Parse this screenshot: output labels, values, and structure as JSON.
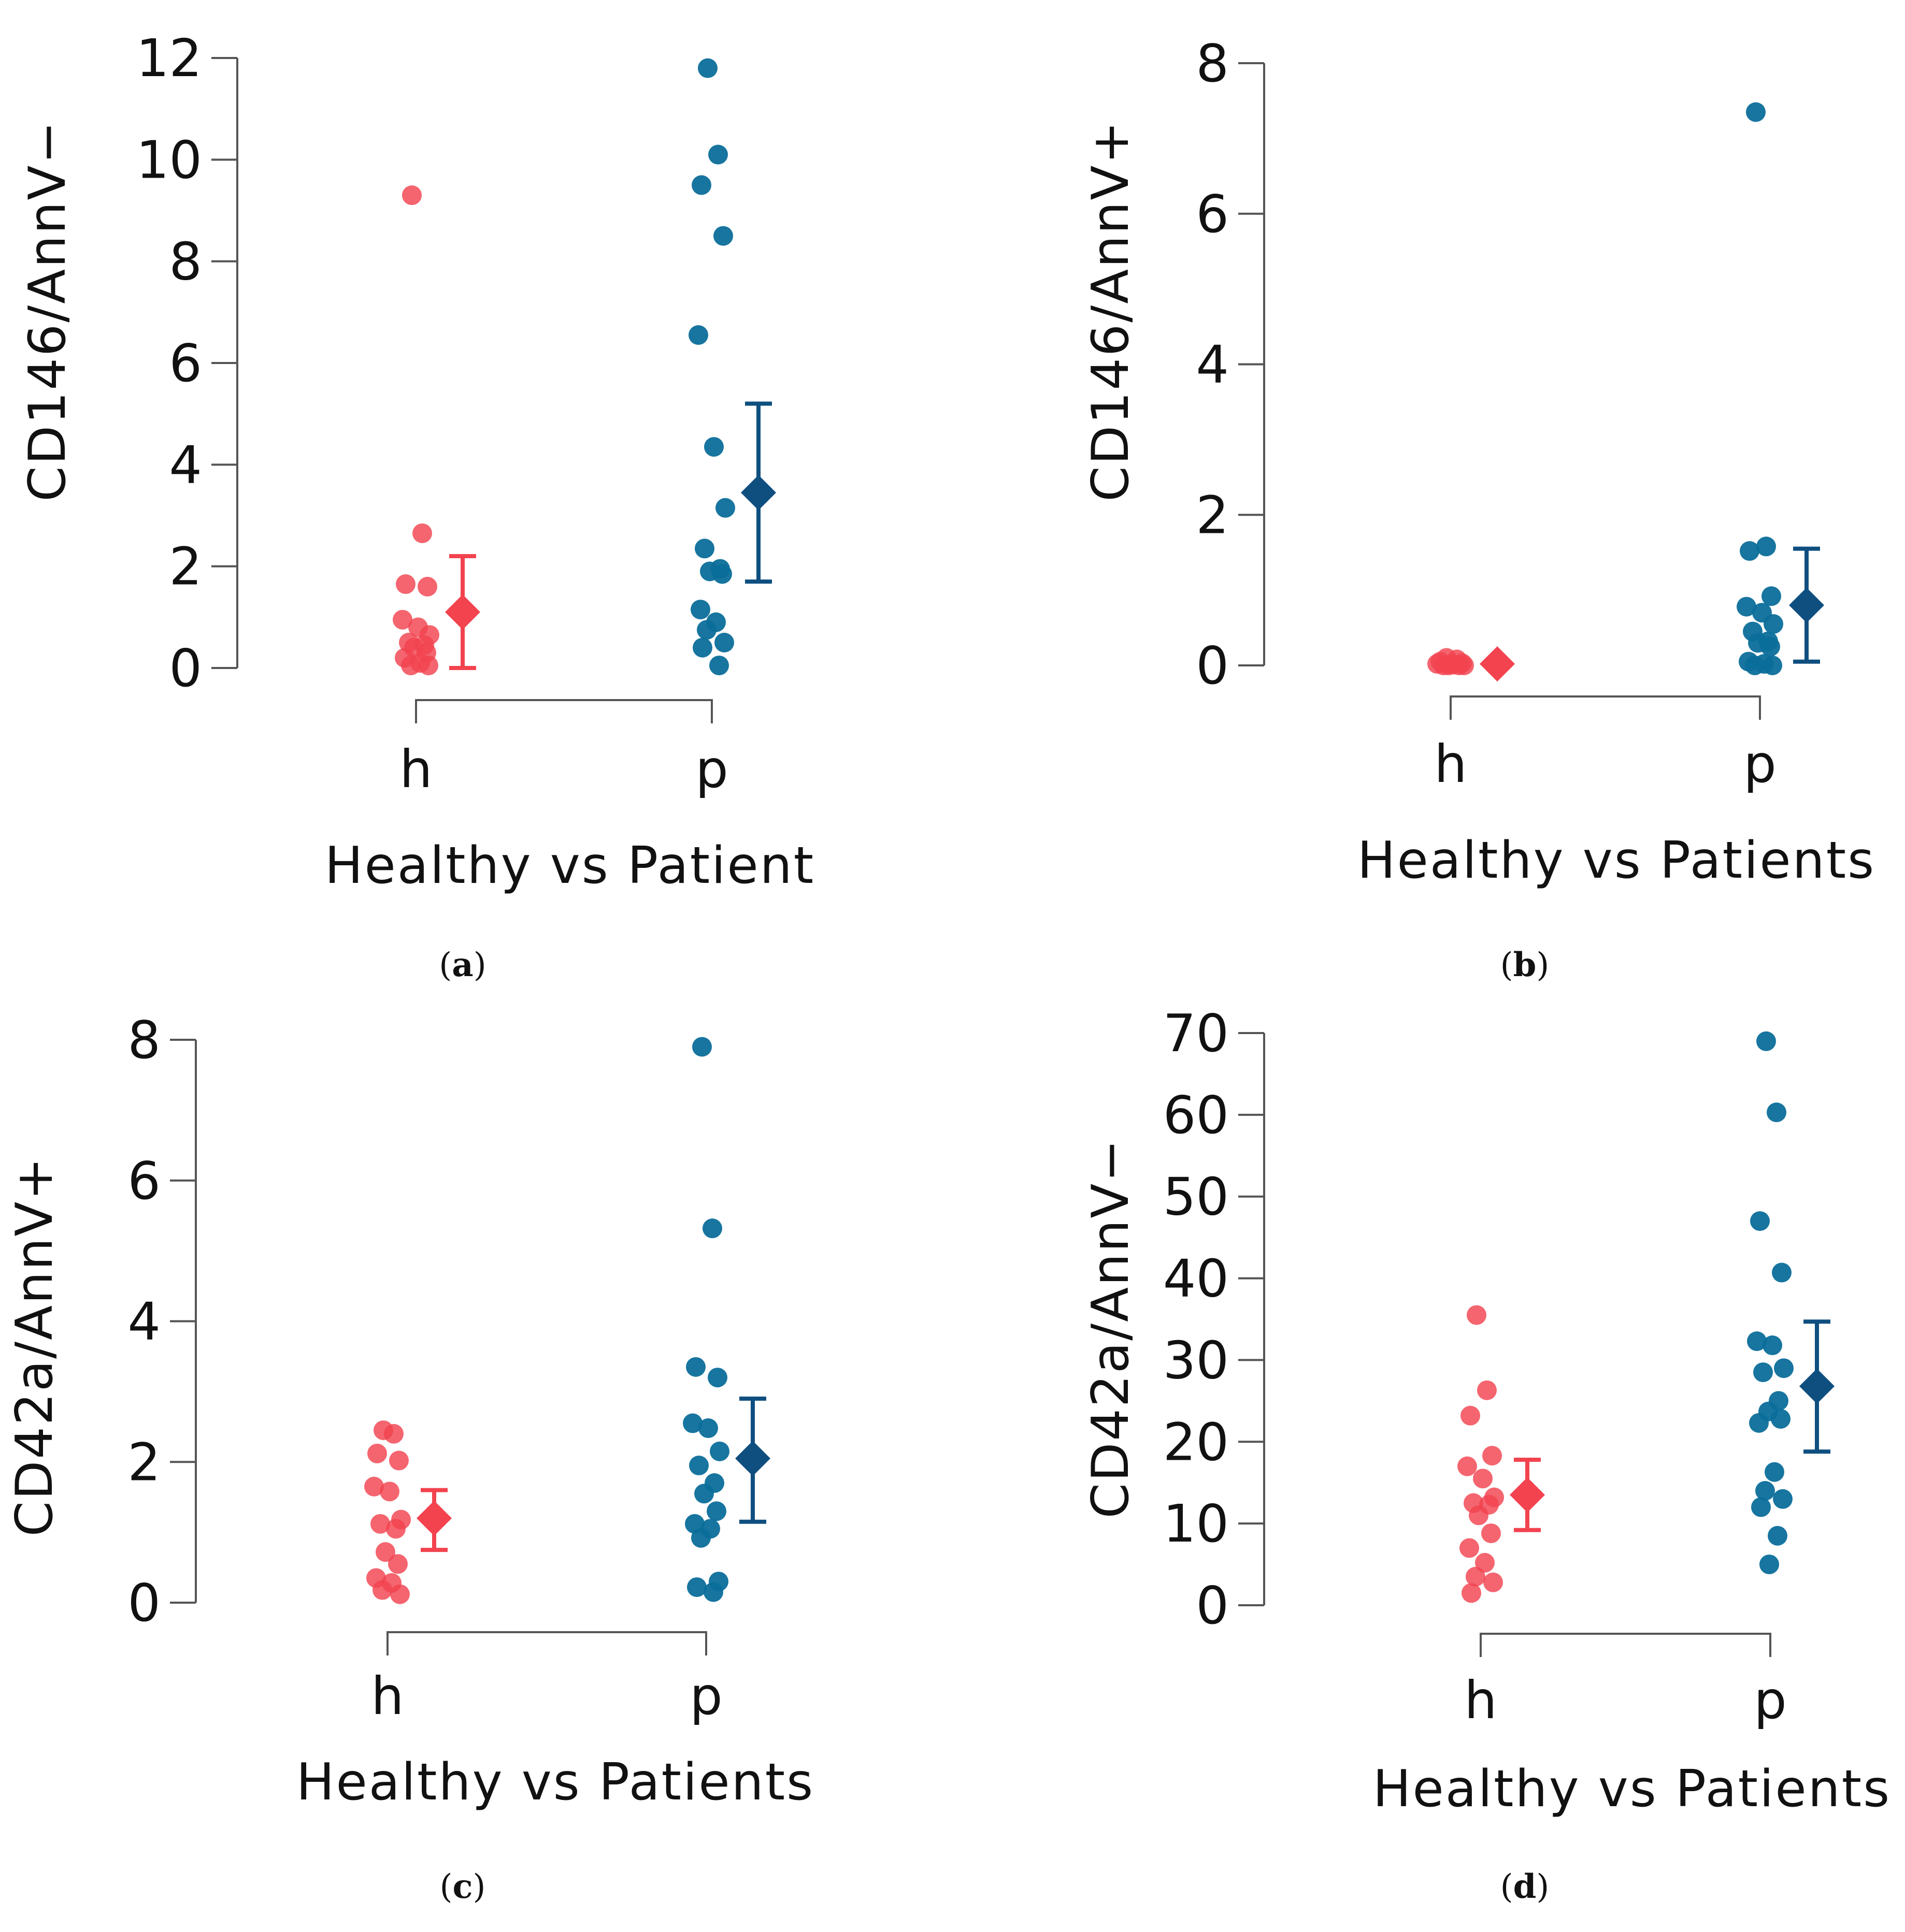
{
  "colors": {
    "healthy": "#f2434f",
    "healthy_marker": "#f2434f",
    "patient": "#0b6e9a",
    "patient_marker": "#0f4f80"
  },
  "chart_data": [
    {
      "id": "a",
      "type": "scatter",
      "caption_letter": "a",
      "ylabel": "CD146/AnnV−",
      "xlabel": "Healthy vs Patient",
      "categories": [
        "h",
        "p"
      ],
      "ylim": [
        0,
        12
      ],
      "yticks": [
        0,
        2,
        4,
        6,
        8,
        10,
        12
      ],
      "series": [
        {
          "name": "h",
          "points": [
            9.3,
            2.65,
            1.65,
            1.6,
            0.95,
            0.8,
            0.65,
            0.5,
            0.45,
            0.4,
            0.3,
            0.2,
            0.1,
            0.05,
            0.05
          ],
          "mean": 1.1,
          "err_low": 0.0,
          "err_high": 2.2
        },
        {
          "name": "p",
          "points": [
            11.8,
            10.1,
            9.5,
            8.5,
            6.55,
            4.35,
            3.15,
            2.35,
            1.95,
            1.9,
            1.85,
            1.15,
            0.9,
            0.75,
            0.5,
            0.4,
            0.05
          ],
          "mean": 3.45,
          "err_low": 1.7,
          "err_high": 5.2
        }
      ]
    },
    {
      "id": "b",
      "type": "scatter",
      "caption_letter": "b",
      "ylabel": "CD146/AnnV+",
      "xlabel": "Healthy vs Patients",
      "categories": [
        "h",
        "p"
      ],
      "ylim": [
        0,
        8
      ],
      "yticks": [
        0,
        2,
        4,
        6,
        8
      ],
      "series": [
        {
          "name": "h",
          "points": [
            0.1,
            0.08,
            0.05,
            0.03,
            0.02,
            0.01,
            0.0,
            0.0,
            0.0,
            0.0
          ],
          "mean": 0.02,
          "err_low": 0.0,
          "err_high": 0.04
        },
        {
          "name": "p",
          "points": [
            7.35,
            1.58,
            1.52,
            0.92,
            0.78,
            0.7,
            0.55,
            0.45,
            0.32,
            0.3,
            0.25,
            0.05,
            0.02,
            0.0,
            0.0
          ],
          "mean": 0.8,
          "err_low": 0.05,
          "err_high": 1.55
        }
      ]
    },
    {
      "id": "c",
      "type": "scatter",
      "caption_letter": "c",
      "ylabel": "CD42a/AnnV+",
      "xlabel": "Healthy vs Patients",
      "categories": [
        "h",
        "p"
      ],
      "ylim": [
        0,
        8
      ],
      "yticks": [
        0,
        2,
        4,
        6,
        8
      ],
      "series": [
        {
          "name": "h",
          "points": [
            2.45,
            2.4,
            2.12,
            2.02,
            1.65,
            1.58,
            1.18,
            1.12,
            1.05,
            0.72,
            0.55,
            0.35,
            0.28,
            0.18,
            0.12
          ],
          "mean": 1.2,
          "err_low": 0.75,
          "err_high": 1.6
        },
        {
          "name": "p",
          "points": [
            7.9,
            5.32,
            3.35,
            3.2,
            2.55,
            2.48,
            2.15,
            1.95,
            1.7,
            1.55,
            1.3,
            1.12,
            1.05,
            0.92,
            0.3,
            0.22,
            0.15
          ],
          "mean": 2.05,
          "err_low": 1.15,
          "err_high": 2.9
        }
      ]
    },
    {
      "id": "d",
      "type": "scatter",
      "caption_letter": "d",
      "ylabel": "CD42a/AnnV−",
      "xlabel": "Healthy vs Patients",
      "categories": [
        "h",
        "p"
      ],
      "ylim": [
        0,
        70
      ],
      "yticks": [
        0,
        10,
        20,
        30,
        40,
        50,
        60,
        70
      ],
      "series": [
        {
          "name": "h",
          "points": [
            35.5,
            26.3,
            23.2,
            18.3,
            17.0,
            15.5,
            13.2,
            12.5,
            12.3,
            11.0,
            8.8,
            7.0,
            5.2,
            3.5,
            2.8,
            1.5
          ],
          "mean": 13.5,
          "err_low": 9.2,
          "err_high": 17.8
        },
        {
          "name": "p",
          "points": [
            69.0,
            60.3,
            47.0,
            40.7,
            32.3,
            31.8,
            29.0,
            28.5,
            25.0,
            23.7,
            22.8,
            22.3,
            16.3,
            14.0,
            13.0,
            12.0,
            8.5,
            5.0
          ],
          "mean": 26.8,
          "err_low": 18.8,
          "err_high": 34.7
        }
      ]
    }
  ]
}
